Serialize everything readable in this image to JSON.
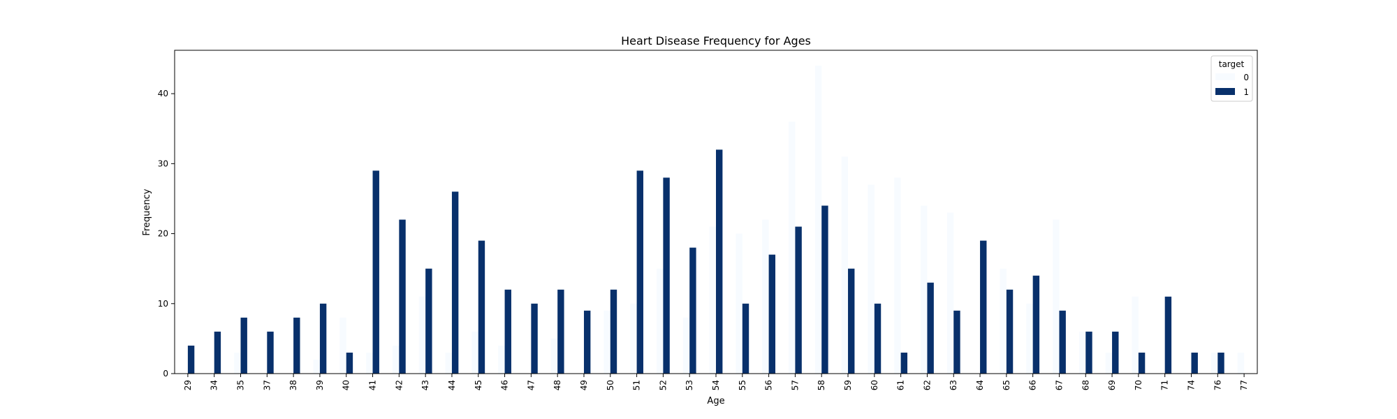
{
  "chart_data": {
    "type": "bar",
    "title": "Heart Disease Frequency for Ages",
    "xlabel": "Age",
    "ylabel": "Frequency",
    "ylim": [
      0,
      46.2
    ],
    "yticks": [
      0,
      10,
      20,
      30,
      40
    ],
    "grid": false,
    "legend": {
      "title": "target",
      "placement": "top-right"
    },
    "categories": [
      "29",
      "34",
      "35",
      "37",
      "38",
      "39",
      "40",
      "41",
      "42",
      "43",
      "44",
      "45",
      "46",
      "47",
      "48",
      "49",
      "50",
      "51",
      "52",
      "53",
      "54",
      "55",
      "56",
      "57",
      "58",
      "59",
      "60",
      "61",
      "62",
      "63",
      "64",
      "65",
      "66",
      "67",
      "68",
      "69",
      "70",
      "71",
      "74",
      "76",
      "77"
    ],
    "series": [
      {
        "name": "0",
        "color": "#f7fbff",
        "values": [
          0,
          0,
          3,
          0,
          0,
          2,
          8,
          3,
          4,
          11,
          3,
          6,
          4,
          0,
          5,
          0,
          9,
          10,
          15,
          8,
          21,
          20,
          22,
          36,
          44,
          31,
          27,
          28,
          24,
          23,
          0,
          15,
          10,
          22,
          6,
          3,
          11,
          0,
          0,
          3,
          3
        ]
      },
      {
        "name": "1",
        "color": "#08306b",
        "values": [
          4,
          6,
          8,
          6,
          8,
          10,
          3,
          29,
          22,
          15,
          26,
          19,
          12,
          10,
          12,
          9,
          12,
          29,
          28,
          18,
          32,
          10,
          17,
          21,
          24,
          15,
          10,
          3,
          13,
          9,
          19,
          12,
          14,
          9,
          6,
          6,
          3,
          11,
          3,
          3,
          0
        ]
      }
    ]
  }
}
